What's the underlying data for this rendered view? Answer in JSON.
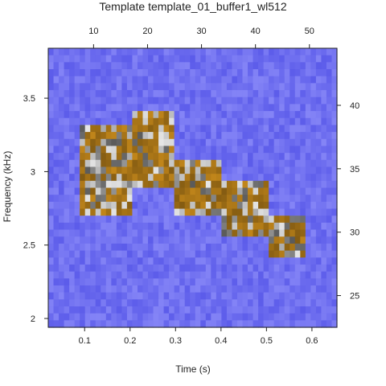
{
  "chart_data": {
    "type": "heatmap",
    "title": "Template template_01_buffer1_wl512",
    "xlabel": "Time (s)",
    "ylabel": "Frequency (kHz)",
    "xlim": [
      0.02,
      0.655
    ],
    "ylim": [
      1.94,
      3.84
    ],
    "x_ticks": [
      0.1,
      0.2,
      0.3,
      0.4,
      0.5,
      0.6
    ],
    "x_tick_labels": [
      "0.1",
      "0.2",
      "0.3",
      "0.4",
      "0.5",
      "0.6"
    ],
    "y_ticks": [
      2.0,
      2.5,
      3.0,
      3.5
    ],
    "y_tick_labels": [
      "2",
      "2.5",
      "3",
      "3.5"
    ],
    "top_axis": {
      "ticks": [
        10,
        20,
        30,
        40,
        50
      ],
      "tick_labels": [
        "10",
        "20",
        "30",
        "40",
        "50"
      ],
      "lim": [
        1.6,
        55.1
      ]
    },
    "right_axis": {
      "ticks": [
        25,
        30,
        35,
        40
      ],
      "tick_labels": [
        "25",
        "30",
        "35",
        "40"
      ],
      "lim": [
        22.5,
        44.5
      ]
    },
    "background_color": "#7070f0",
    "signal_color": "#b07a18",
    "template_segments": [
      {
        "t0": 0.09,
        "t1": 0.2,
        "f0": 2.72,
        "f1": 3.3
      },
      {
        "t0": 0.2,
        "t1": 0.3,
        "f0": 2.88,
        "f1": 3.4
      },
      {
        "t0": 0.3,
        "t1": 0.4,
        "f0": 2.72,
        "f1": 3.1
      },
      {
        "t0": 0.4,
        "t1": 0.5,
        "f0": 2.55,
        "f1": 2.96
      },
      {
        "t0": 0.5,
        "t1": 0.59,
        "f0": 2.4,
        "f1": 2.72
      }
    ]
  }
}
